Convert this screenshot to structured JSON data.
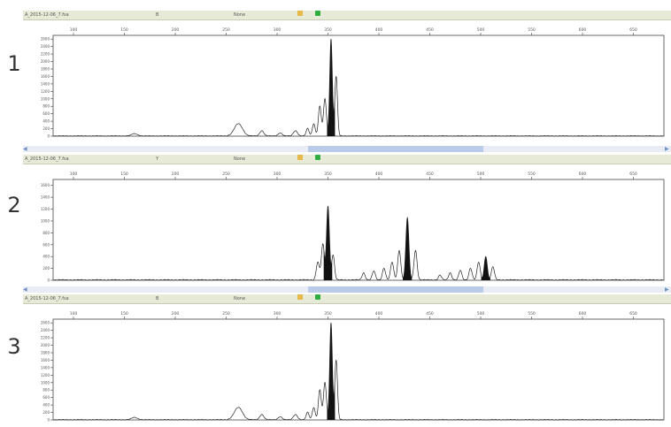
{
  "lanes": [
    {
      "number": "1",
      "header": {
        "sample": "A_2015-12-06_7.fsa",
        "dye": "B",
        "status": "None"
      },
      "y_ticks": [
        "2600",
        "2400",
        "2200",
        "2000",
        "1800",
        "1600",
        "1400",
        "1200",
        "1000",
        "800",
        "600",
        "400",
        "200",
        "0"
      ],
      "x_ticks": [
        "100",
        "150",
        "200",
        "250",
        "300",
        "350",
        "400",
        "450",
        "500",
        "550",
        "600",
        "650"
      ]
    },
    {
      "number": "2",
      "header": {
        "sample": "A_2015-12-06_7.fsa",
        "dye": "Y",
        "status": "None"
      },
      "y_ticks": [
        "1600",
        "1400",
        "1200",
        "1000",
        "800",
        "600",
        "400",
        "200",
        "0"
      ],
      "x_ticks": [
        "100",
        "150",
        "200",
        "250",
        "300",
        "350",
        "400",
        "450",
        "500",
        "550",
        "600",
        "650"
      ]
    },
    {
      "number": "3",
      "header": {
        "sample": "A_2015-12-06_7.fsa",
        "dye": "B",
        "status": "None"
      },
      "y_ticks": [
        "2600",
        "2400",
        "2200",
        "2000",
        "1800",
        "1600",
        "1400",
        "1200",
        "1000",
        "800",
        "600",
        "400",
        "200",
        "0"
      ],
      "x_ticks": [
        "100",
        "150",
        "200",
        "250",
        "300",
        "350",
        "400",
        "450",
        "500",
        "550",
        "600",
        "650"
      ]
    }
  ],
  "chart_data": [
    {
      "type": "line",
      "lane": "1",
      "xlim": [
        80,
        680
      ],
      "ylim": [
        0,
        2700
      ],
      "peaks": [
        {
          "x": 160,
          "h": 60,
          "w": 3,
          "filled": false
        },
        {
          "x": 262,
          "h": 330,
          "w": 4,
          "filled": false
        },
        {
          "x": 285,
          "h": 140,
          "w": 2,
          "filled": false
        },
        {
          "x": 303,
          "h": 80,
          "w": 2,
          "filled": false
        },
        {
          "x": 318,
          "h": 140,
          "w": 2,
          "filled": false
        },
        {
          "x": 330,
          "h": 200,
          "w": 1.4,
          "filled": false
        },
        {
          "x": 336,
          "h": 330,
          "w": 1.4,
          "filled": false
        },
        {
          "x": 342,
          "h": 800,
          "w": 1.4,
          "filled": false
        },
        {
          "x": 347,
          "h": 1000,
          "w": 1.4,
          "filled": false
        },
        {
          "x": 353,
          "h": 2600,
          "w": 1.3,
          "filled": true
        },
        {
          "x": 358,
          "h": 1600,
          "w": 1.3,
          "filled": false
        }
      ]
    },
    {
      "type": "line",
      "lane": "2",
      "xlim": [
        80,
        680
      ],
      "ylim": [
        0,
        1700
      ],
      "peaks": [
        {
          "x": 340,
          "h": 300,
          "w": 1.5,
          "filled": false
        },
        {
          "x": 345,
          "h": 600,
          "w": 1.5,
          "filled": false
        },
        {
          "x": 350,
          "h": 1250,
          "w": 1.4,
          "filled": true
        },
        {
          "x": 355,
          "h": 420,
          "w": 1.4,
          "filled": false
        },
        {
          "x": 385,
          "h": 120,
          "w": 1.5,
          "filled": false
        },
        {
          "x": 395,
          "h": 150,
          "w": 1.5,
          "filled": false
        },
        {
          "x": 405,
          "h": 200,
          "w": 1.5,
          "filled": false
        },
        {
          "x": 413,
          "h": 300,
          "w": 1.5,
          "filled": false
        },
        {
          "x": 420,
          "h": 500,
          "w": 1.5,
          "filled": false
        },
        {
          "x": 428,
          "h": 1050,
          "w": 1.5,
          "filled": true
        },
        {
          "x": 436,
          "h": 500,
          "w": 1.5,
          "filled": false
        },
        {
          "x": 460,
          "h": 80,
          "w": 1.5,
          "filled": false
        },
        {
          "x": 470,
          "h": 120,
          "w": 1.5,
          "filled": false
        },
        {
          "x": 480,
          "h": 160,
          "w": 1.5,
          "filled": false
        },
        {
          "x": 490,
          "h": 200,
          "w": 1.5,
          "filled": false
        },
        {
          "x": 498,
          "h": 300,
          "w": 1.5,
          "filled": false
        },
        {
          "x": 505,
          "h": 400,
          "w": 1.5,
          "filled": true
        },
        {
          "x": 512,
          "h": 220,
          "w": 1.5,
          "filled": false
        }
      ]
    },
    {
      "type": "line",
      "lane": "3",
      "xlim": [
        80,
        680
      ],
      "ylim": [
        0,
        2700
      ],
      "peaks": [
        {
          "x": 160,
          "h": 60,
          "w": 3,
          "filled": false
        },
        {
          "x": 262,
          "h": 330,
          "w": 4,
          "filled": false
        },
        {
          "x": 285,
          "h": 140,
          "w": 2,
          "filled": false
        },
        {
          "x": 303,
          "h": 80,
          "w": 2,
          "filled": false
        },
        {
          "x": 318,
          "h": 140,
          "w": 2,
          "filled": false
        },
        {
          "x": 330,
          "h": 200,
          "w": 1.4,
          "filled": false
        },
        {
          "x": 336,
          "h": 330,
          "w": 1.4,
          "filled": false
        },
        {
          "x": 342,
          "h": 800,
          "w": 1.4,
          "filled": false
        },
        {
          "x": 347,
          "h": 1000,
          "w": 1.4,
          "filled": false
        },
        {
          "x": 353,
          "h": 2600,
          "w": 1.3,
          "filled": true
        },
        {
          "x": 358,
          "h": 1600,
          "w": 1.3,
          "filled": false
        }
      ]
    }
  ],
  "colors": {
    "header_bg": "#e8ead8",
    "scroll_thumb": "#b9cbe8",
    "trace": "#222222"
  }
}
